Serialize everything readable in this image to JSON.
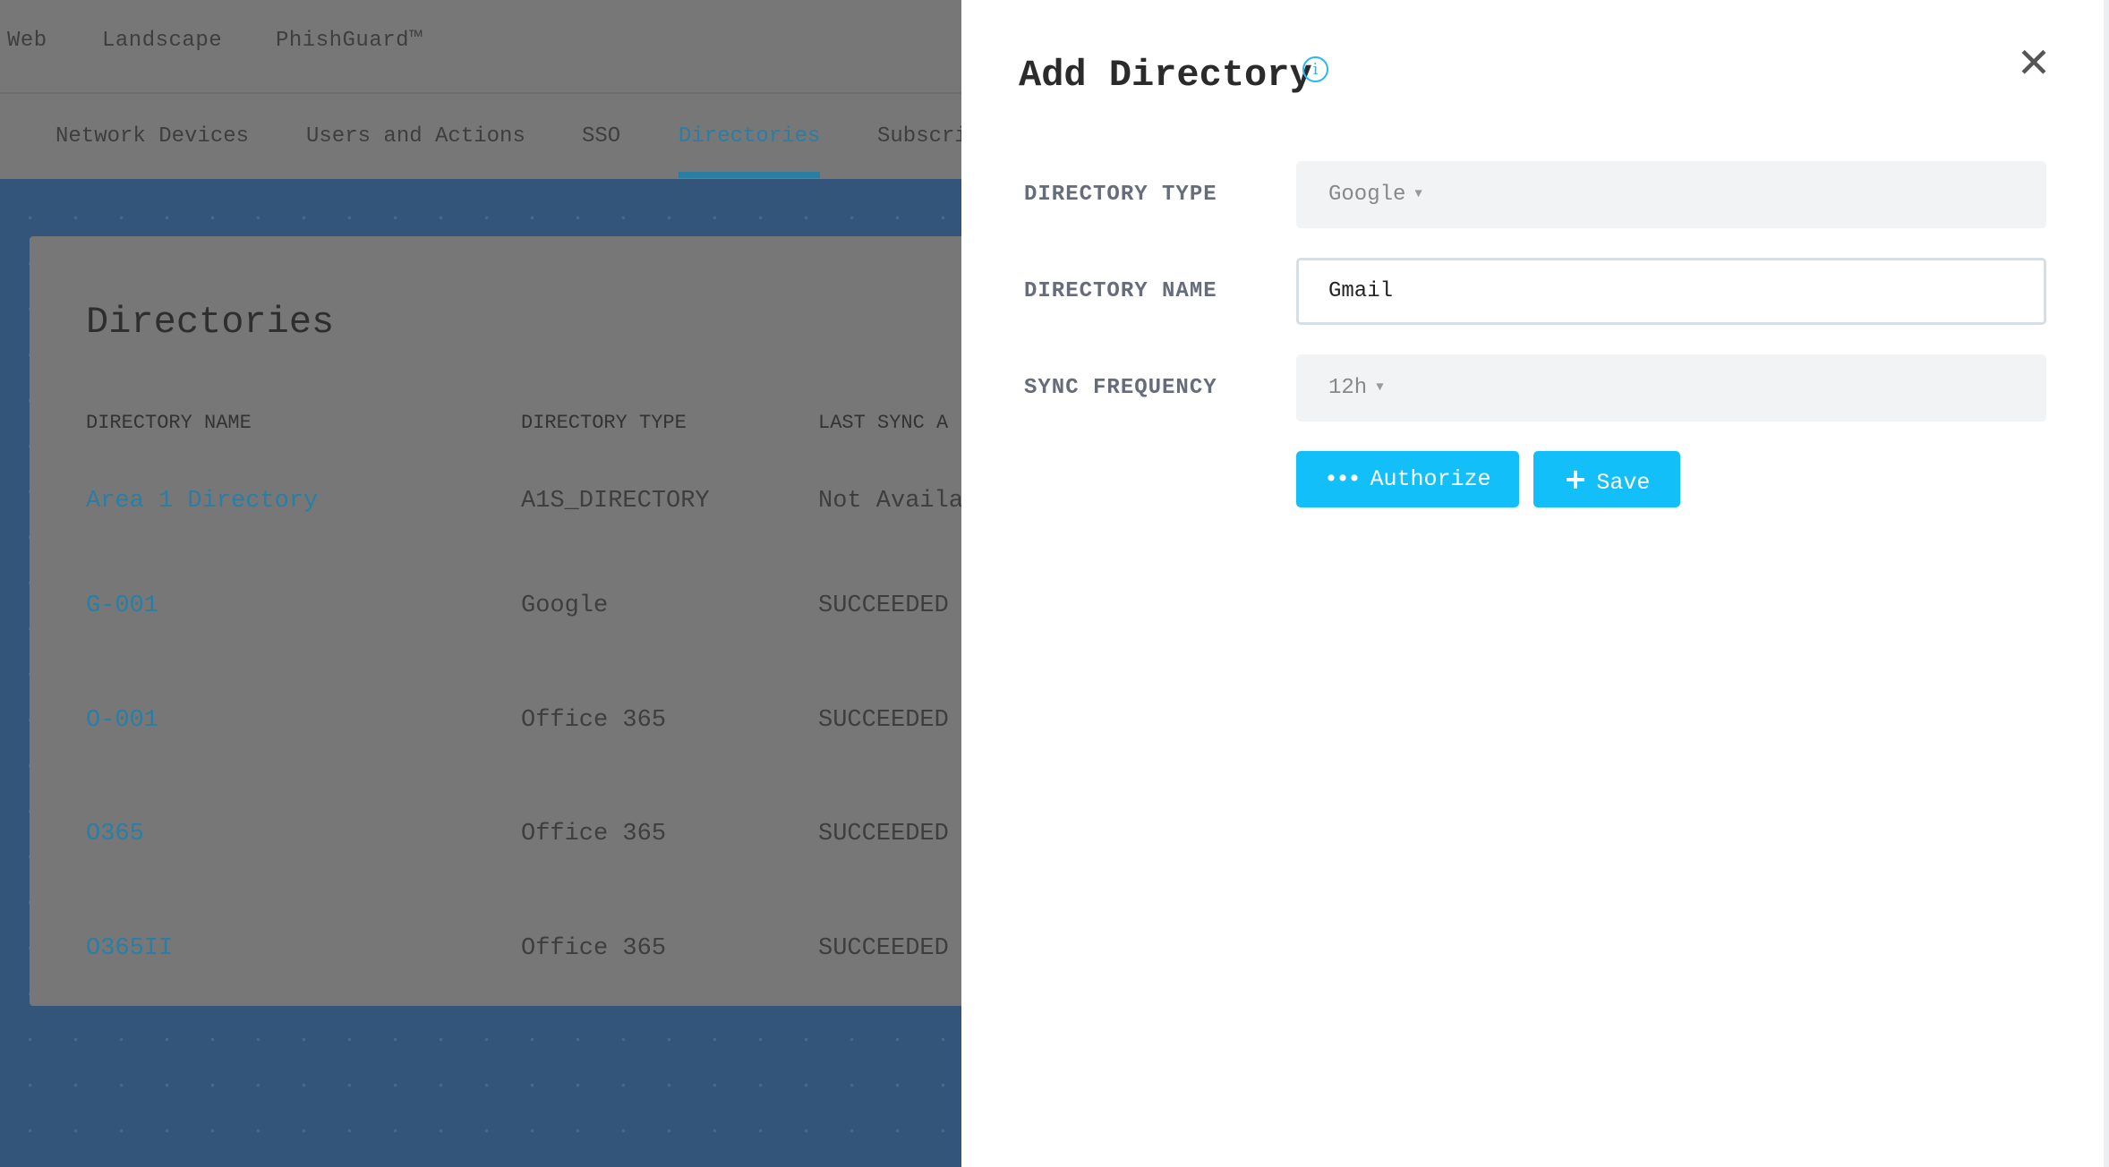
{
  "topnav": {
    "items": [
      "Web",
      "Landscape",
      "PhishGuard™"
    ]
  },
  "tabs": {
    "items": [
      "Network Devices",
      "Users and Actions",
      "SSO",
      "Directories",
      "Subscri"
    ],
    "active": "Directories"
  },
  "card": {
    "title": "Directories",
    "columns": [
      "DIRECTORY NAME",
      "DIRECTORY TYPE",
      "LAST SYNC A"
    ],
    "rows": [
      {
        "name": "Area 1 Directory",
        "type": "A1S_DIRECTORY",
        "sync": "Not Availa"
      },
      {
        "name": "G-001",
        "type": "Google",
        "sync": "SUCCEEDED"
      },
      {
        "name": "O-001",
        "type": "Office 365",
        "sync": "SUCCEEDED"
      },
      {
        "name": "O365",
        "type": "Office 365",
        "sync": "SUCCEEDED"
      },
      {
        "name": "O365II",
        "type": "Office 365",
        "sync": "SUCCEEDED"
      }
    ]
  },
  "panel": {
    "title": "Add Directory",
    "info_icon": "i",
    "close_icon": "✕",
    "directory_type": {
      "label": "DIRECTORY TYPE",
      "value": "Google"
    },
    "directory_name": {
      "label": "DIRECTORY NAME",
      "value": "Gmail"
    },
    "sync_frequency": {
      "label": "SYNC FREQUENCY",
      "value": "12h"
    },
    "authorize_label": "Authorize",
    "save_label": "Save"
  },
  "colors": {
    "accent": "#12bff8",
    "link": "#2a7ea3",
    "background_blue": "#33557a"
  }
}
